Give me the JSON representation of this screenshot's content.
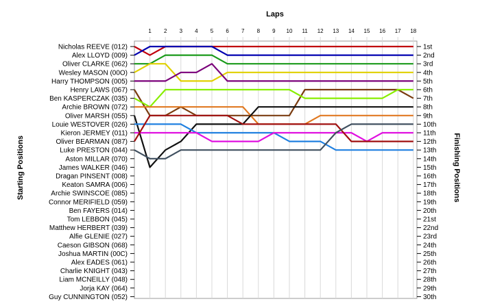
{
  "chart_data": {
    "type": "line",
    "title": "Laps",
    "xlabel": "Laps",
    "ylabel_left": "Starting Positions",
    "ylabel_right": "Finishing Positions",
    "laps": [
      1,
      2,
      3,
      4,
      5,
      6,
      7,
      8,
      9,
      10,
      11,
      12,
      13,
      14,
      15,
      16,
      17,
      18
    ],
    "start_labels": [
      "Nicholas REEVE (012)",
      "Alex LLOYD (009)",
      "Oliver CLARKE (062)",
      "Wesley MASON (00O)",
      "Harry THOMPSON (005)",
      "Henry LAWS (067)",
      "Ben KASPERCZAK (035)",
      "Archie BROWN (072)",
      "Oliver MARSH (055)",
      "Louie WESTOVER (026)",
      "Kieron JERMEY (011)",
      "Oliver BEARMAN (087)",
      "Luke PRESTON (044)",
      "Aston MILLAR (070)",
      "James WALKER (046)",
      "Dragan PINSENT (008)",
      "Keaton SAMRA (006)",
      "Archie SWINSCOE (085)",
      "Connor MERIFIELD (059)",
      "Ben FAYERS (014)",
      "Tom LEBBON (045)",
      "Matthew HERBERT (039)",
      "Alfie GLENIE (027)",
      "Caeson GIBSON (068)",
      "Joshua MARTIN (00C)",
      "Alex EADES (061)",
      "Charlie KNIGHT (043)",
      "Liam MCNEILLY (048)",
      "Jorja KAY (064)",
      "Guy CUNNINGTON (052)"
    ],
    "finish_labels": [
      "1st",
      "2nd",
      "3rd",
      "4th",
      "5th",
      "6th",
      "7th",
      "8th",
      "9th",
      "10th",
      "11th",
      "12th",
      "13th",
      "14th",
      "15th",
      "16th",
      "17th",
      "18th",
      "19th",
      "20th",
      "21st",
      "22nd",
      "23rd",
      "24th",
      "25th",
      "26th",
      "27th",
      "28th",
      "29th",
      "30th"
    ],
    "series": [
      {
        "color": "#c0000b",
        "positions": [
          1,
          2,
          1,
          1,
          1,
          1,
          1,
          1,
          1,
          1,
          1,
          1,
          1,
          1,
          1,
          1,
          1,
          1,
          1
        ]
      },
      {
        "color": "#0000b0",
        "positions": [
          2,
          1,
          1,
          1,
          1,
          1,
          2,
          2,
          2,
          2,
          2,
          2,
          2,
          2,
          2,
          2,
          2,
          2,
          2
        ]
      },
      {
        "color": "#1a9a1a",
        "positions": [
          3,
          3,
          2,
          2,
          2,
          2,
          3,
          3,
          3,
          3,
          3,
          3,
          3,
          3,
          3,
          3,
          3,
          3,
          3
        ]
      },
      {
        "color": "#e0d000",
        "positions": [
          4,
          3,
          3,
          5,
          5,
          5,
          4,
          4,
          4,
          4,
          4,
          4,
          4,
          4,
          4,
          4,
          4,
          4,
          4
        ]
      },
      {
        "color": "#7a007a",
        "positions": [
          5,
          5,
          5,
          4,
          4,
          3,
          5,
          5,
          5,
          5,
          5,
          5,
          5,
          5,
          5,
          5,
          5,
          5,
          5
        ]
      },
      {
        "color": "#7a3c10",
        "positions": [
          6,
          9,
          9,
          8,
          9,
          9,
          9,
          9,
          9,
          9,
          9,
          6,
          6,
          6,
          6,
          6,
          6,
          6,
          7
        ]
      },
      {
        "color": "#88ee00",
        "positions": [
          7,
          8,
          6,
          6,
          6,
          6,
          6,
          6,
          6,
          6,
          6,
          7,
          7,
          7,
          7,
          7,
          7,
          6,
          6
        ]
      },
      {
        "color": "#e07820",
        "positions": [
          8,
          8,
          8,
          8,
          8,
          8,
          8,
          8,
          10,
          10,
          10,
          10,
          9,
          9,
          9,
          9,
          9,
          9,
          9
        ]
      },
      {
        "color": "#111111",
        "positions": [
          9,
          15,
          13,
          12,
          10,
          10,
          10,
          10,
          8,
          8,
          8,
          8,
          8,
          8,
          8,
          8,
          8,
          8,
          8
        ]
      },
      {
        "color": "#2080e0",
        "positions": [
          10,
          10,
          10,
          10,
          11,
          11,
          11,
          11,
          11,
          11,
          12,
          12,
          12,
          13,
          13,
          13,
          13,
          13,
          13
        ]
      },
      {
        "color": "#e010e0",
        "positions": [
          11,
          11,
          11,
          11,
          11,
          12,
          12,
          12,
          12,
          11,
          11,
          11,
          11,
          11,
          11,
          12,
          11,
          11,
          11
        ]
      },
      {
        "color": "#a01010",
        "positions": [
          12,
          9,
          9,
          9,
          9,
          9,
          9,
          10,
          10,
          10,
          10,
          10,
          10,
          10,
          12,
          12,
          12,
          12,
          12
        ]
      },
      {
        "color": "#405060",
        "positions": [
          13,
          14,
          14,
          13,
          13,
          13,
          13,
          13,
          13,
          13,
          13,
          13,
          13,
          11,
          10,
          10,
          10,
          10,
          10
        ]
      }
    ]
  }
}
